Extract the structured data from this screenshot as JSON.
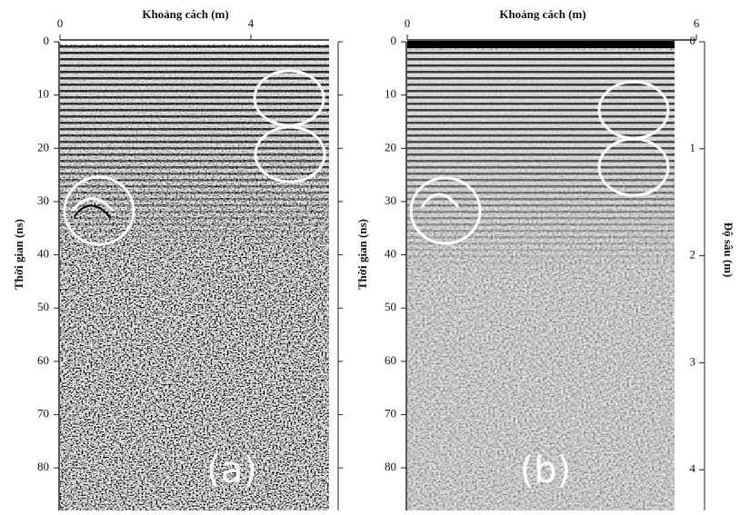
{
  "panels": [
    {
      "x_axis_label": "Khoảng cách (m)",
      "xticks": [
        0,
        4
      ],
      "xlim": [
        0,
        5.64
      ],
      "y_axis_label": "Thời gian (ns)",
      "yticks": [
        0,
        10,
        20,
        30,
        40,
        50,
        60,
        70,
        80
      ],
      "ylim": [
        0,
        88
      ],
      "label": "(a)"
    },
    {
      "x_axis_label": "Khoảng cách (m)",
      "xticks": [
        0,
        6
      ],
      "xlim": [
        0,
        6
      ],
      "y_axis_label": "Thời gian (ns)",
      "yticks": [
        0,
        10,
        20,
        30,
        40,
        50,
        60,
        70,
        80
      ],
      "ylim": [
        0,
        88
      ],
      "y2_axis_label": "Độ sâu (m)",
      "y2ticks": [
        0,
        1,
        2,
        3,
        4
      ],
      "y2lim": [
        0,
        4.38
      ],
      "label": "(b)"
    }
  ]
}
